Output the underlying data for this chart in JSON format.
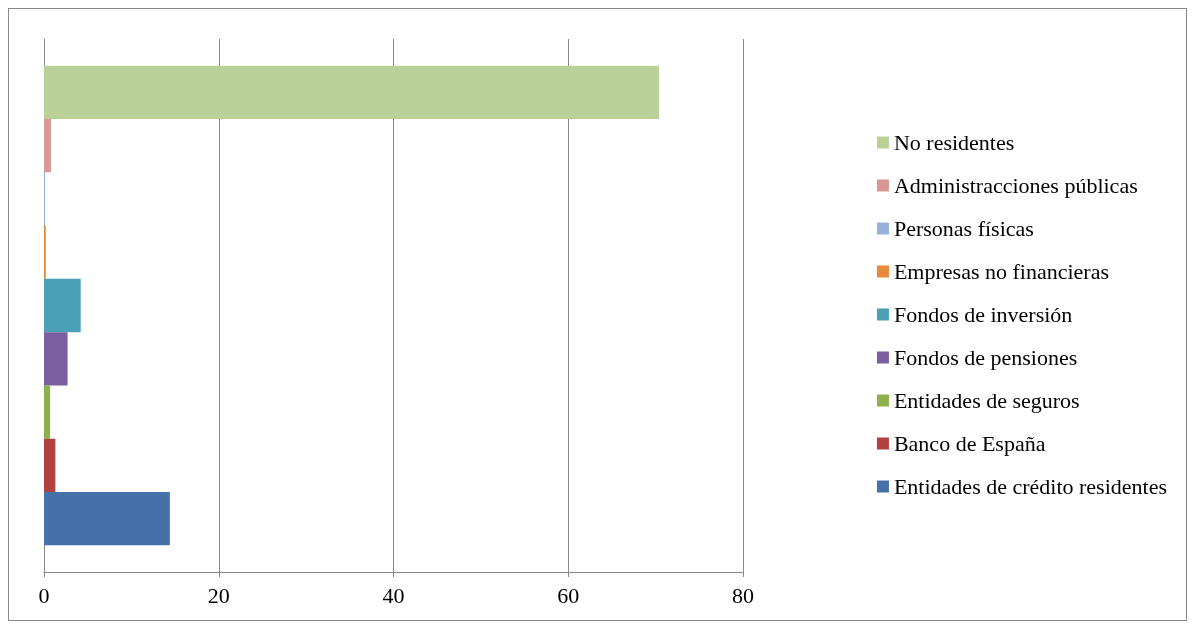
{
  "chart_data": {
    "type": "bar",
    "orientation": "horizontal",
    "categories": [
      null
    ],
    "series": [
      {
        "name": "No residentes",
        "color": "#b9d097",
        "values": [
          70.4
        ]
      },
      {
        "name": "Administracciones públicas",
        "color": "#d99795",
        "values": [
          0.8
        ]
      },
      {
        "name": "Personas físicas",
        "color": "#95b3d7",
        "values": [
          0.1
        ]
      },
      {
        "name": "Empresas no financieras",
        "color": "#e8883a",
        "values": [
          0.2
        ]
      },
      {
        "name": "Fondos de inversión",
        "color": "#4aa0b6",
        "values": [
          4.2
        ]
      },
      {
        "name": "Fondos de pensiones",
        "color": "#7a5e9f",
        "values": [
          2.7
        ]
      },
      {
        "name": "Entidades de seguros",
        "color": "#8eb04b",
        "values": [
          0.7
        ]
      },
      {
        "name": "Banco de España",
        "color": "#b0413e",
        "values": [
          1.3
        ]
      },
      {
        "name": "Entidades de crédito residentes",
        "color": "#4571a9",
        "values": [
          14.4
        ]
      }
    ],
    "xlim": [
      0,
      80
    ],
    "xticks": [
      0,
      20,
      40,
      60,
      80
    ],
    "grid": "x",
    "legend": "right",
    "tick_labels": "x"
  }
}
